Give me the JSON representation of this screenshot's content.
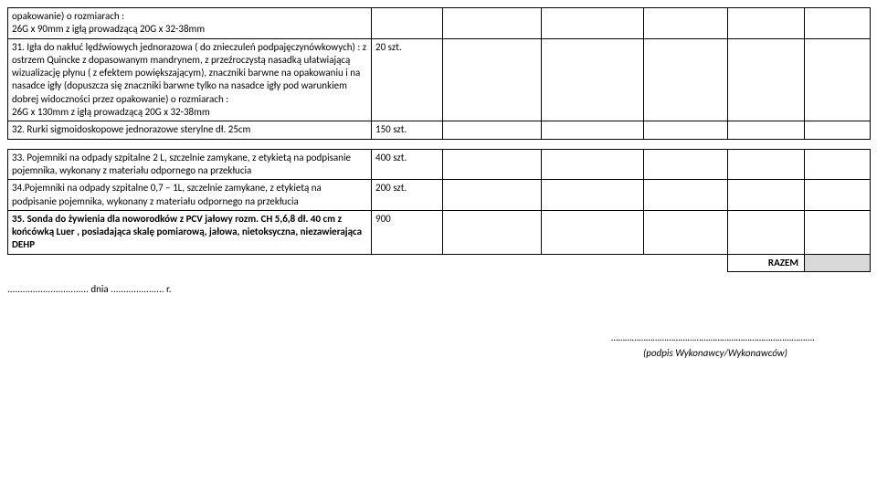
{
  "rows": [
    {
      "desc": "opakowanie) o rozmiarach :\n26G x 90mm z igłą prowadzącą 20G x 32-38mm",
      "qty": ""
    },
    {
      "desc": "31. Igła do nakłuć lędźwiowych jednorazowa ( do znieczuleń podpajęczynówkowych) : z ostrzem Quincke z dopasowanym mandrynem, z przeźroczystą nasadką ułatwiającą wizualizację płynu ( z efektem powiększającym), znaczniki barwne na opakowaniu i na nasadce igły (dopuszcza się znaczniki barwne tylko na nasadce igły pod warunkiem dobrej widoczności przez opakowanie) o rozmiarach :\n26G x 130mm z igłą prowadzącą 20G x 32-38mm",
      "qty": "20 szt."
    },
    {
      "desc": "32. Rurki sigmoidoskopowe jednorazowe sterylne dł. 25cm",
      "qty": "150 szt."
    }
  ],
  "gap_rows": [
    {
      "desc": "33. Pojemniki na odpady szpitalne 2 L, szczelnie zamykane, z etykietą na podpisanie pojemnika, wykonany z materiału odpornego na przekłucia",
      "qty": "400 szt."
    },
    {
      "desc": "34.Pojemniki na odpady szpitalne 0,7 – 1L, szczelnie zamykane, z etykietą na podpisanie pojemnika, wykonany z materiału odpornego na przekłucia",
      "qty": "200 szt."
    },
    {
      "desc": "35. Sonda do żywienia dla noworodków z PCV jałowy rozm. CH 5,6,8 dł. 40 cm z końcówką Luer , posiadająca skalę pomiarową, jałowa, nietoksyczna, niezawierająca DEHP",
      "qty": "900",
      "bold": true
    }
  ],
  "razem_label": "RAZEM",
  "date_line": "................................ dnia ..................... r.",
  "sig_dots": "…………………………………………………………………………….",
  "sig_label": "(podpis Wykonawcy/Wykonawców)"
}
